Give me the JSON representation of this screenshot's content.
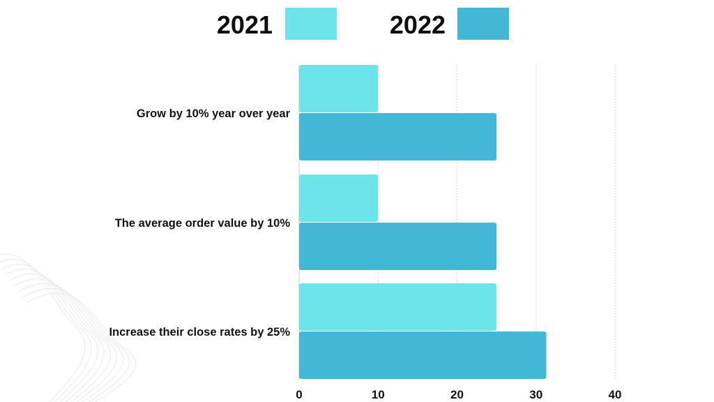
{
  "chart_data": {
    "type": "bar",
    "orientation": "horizontal",
    "categories": [
      "Grow by 10% year over year",
      "The average order value by 10%",
      "Increase their close rates by 25%"
    ],
    "series": [
      {
        "name": "2021",
        "values": [
          10,
          10,
          25
        ],
        "color": "#6be5e8"
      },
      {
        "name": "2022",
        "values": [
          25,
          25,
          31.3
        ],
        "color": "#42b7d6"
      }
    ],
    "xlim": [
      0,
      40
    ],
    "xticks": [
      "0",
      "10",
      "20",
      "30",
      "40"
    ],
    "grid": true,
    "legend_position": "top-center",
    "title": "",
    "xlabel": "",
    "ylabel": ""
  }
}
